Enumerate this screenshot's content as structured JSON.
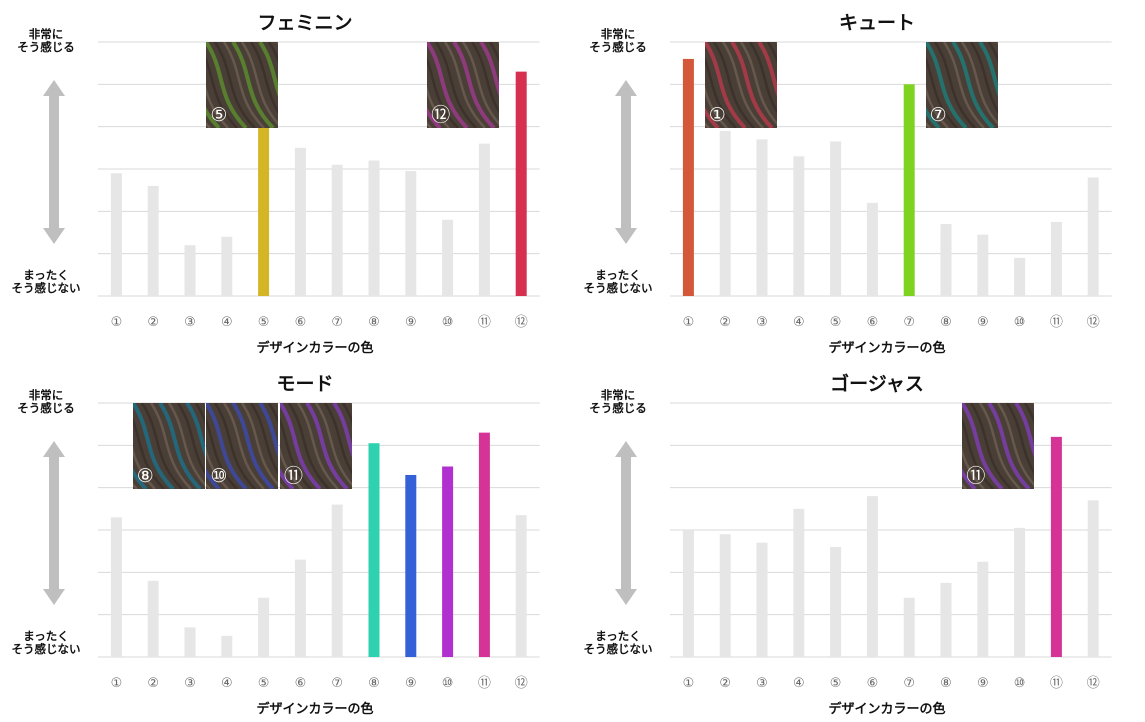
{
  "common": {
    "y_top_label": "非常に\nそう感じる",
    "y_bottom_label": "まったく\nそう感じない",
    "x_title": "デザインカラーの色",
    "categories": [
      "①",
      "②",
      "③",
      "④",
      "⑤",
      "⑥",
      "⑦",
      "⑧",
      "⑨",
      "⑩",
      "⑪",
      "⑫"
    ]
  },
  "colors": {
    "inactive_bar": "#e6e6e6",
    "gridline": "#d9d9d9",
    "arrow": "#bfbfbf",
    "hair_base": "#4a3f36"
  },
  "chart_data": [
    {
      "type": "bar",
      "title": "フェミニン",
      "xlabel": "デザインカラーの色",
      "ylabel_top": "非常に\nそう感じる",
      "ylabel_bottom": "まったく\nそう感じない",
      "categories": [
        "①",
        "②",
        "③",
        "④",
        "⑤",
        "⑥",
        "⑦",
        "⑧",
        "⑨",
        "⑩",
        "⑪",
        "⑫"
      ],
      "values": [
        2.9,
        2.6,
        1.2,
        1.4,
        4.9,
        3.5,
        3.1,
        3.2,
        2.95,
        1.8,
        3.6,
        5.3
      ],
      "ylim": [
        0,
        6
      ],
      "highlight": [
        {
          "index": 4,
          "color": "#d4b526"
        },
        {
          "index": 11,
          "color": "#d62f4f"
        }
      ],
      "thumbnails": [
        {
          "label": "⑤",
          "at_category": 3,
          "tint": "#5a8a2e"
        },
        {
          "label": "⑫",
          "at_category": 9,
          "tint": "#9a3b8a"
        }
      ]
    },
    {
      "type": "bar",
      "title": "キュート",
      "xlabel": "デザインカラーの色",
      "ylabel_top": "非常に\nそう感じる",
      "ylabel_bottom": "まったく\nそう感じない",
      "categories": [
        "①",
        "②",
        "③",
        "④",
        "⑤",
        "⑥",
        "⑦",
        "⑧",
        "⑨",
        "⑩",
        "⑪",
        "⑫"
      ],
      "values": [
        5.6,
        3.9,
        3.7,
        3.3,
        3.65,
        2.2,
        5.0,
        1.7,
        1.45,
        0.9,
        1.75,
        2.8
      ],
      "ylim": [
        0,
        6
      ],
      "highlight": [
        {
          "index": 0,
          "color": "#d4573a"
        },
        {
          "index": 6,
          "color": "#7ed321"
        }
      ],
      "thumbnails": [
        {
          "label": "①",
          "at_category": 1,
          "tint": "#b23a4a"
        },
        {
          "label": "⑦",
          "at_category": 7,
          "tint": "#1f7a78"
        }
      ]
    },
    {
      "type": "bar",
      "title": "モード",
      "xlabel": "デザインカラーの色",
      "ylabel_top": "非常に\nそう感じる",
      "ylabel_bottom": "まったく\nそう感じない",
      "categories": [
        "①",
        "②",
        "③",
        "④",
        "⑤",
        "⑥",
        "⑦",
        "⑧",
        "⑨",
        "⑩",
        "⑪",
        "⑫"
      ],
      "values": [
        3.3,
        1.8,
        0.7,
        0.5,
        1.4,
        2.3,
        3.6,
        5.05,
        4.3,
        4.5,
        5.3,
        3.35
      ],
      "ylim": [
        0,
        6
      ],
      "highlight": [
        {
          "index": 7,
          "color": "#2ed1b0"
        },
        {
          "index": 8,
          "color": "#3461d8"
        },
        {
          "index": 9,
          "color": "#b130d0"
        },
        {
          "index": 10,
          "color": "#d63396"
        }
      ],
      "thumbnails": [
        {
          "label": "⑧",
          "at_category": 1,
          "tint": "#1f6f86"
        },
        {
          "label": "⑩",
          "at_category": 3,
          "tint": "#3d4aa8"
        },
        {
          "label": "⑪",
          "at_category": 5,
          "tint": "#7d3db0"
        }
      ]
    },
    {
      "type": "bar",
      "title": "ゴージャス",
      "xlabel": "デザインカラーの色",
      "ylabel_top": "非常に\nそう感じる",
      "ylabel_bottom": "まったく\nそう感じない",
      "categories": [
        "①",
        "②",
        "③",
        "④",
        "⑤",
        "⑥",
        "⑦",
        "⑧",
        "⑨",
        "⑩",
        "⑪",
        "⑫"
      ],
      "values": [
        3.0,
        2.9,
        2.7,
        3.5,
        2.6,
        3.8,
        1.4,
        1.75,
        2.25,
        3.05,
        5.2,
        3.7
      ],
      "ylim": [
        0,
        6
      ],
      "highlight": [
        {
          "index": 10,
          "color": "#d63396"
        }
      ],
      "thumbnails": [
        {
          "label": "⑪",
          "at_category": 8,
          "tint": "#7d3db0"
        }
      ]
    }
  ]
}
